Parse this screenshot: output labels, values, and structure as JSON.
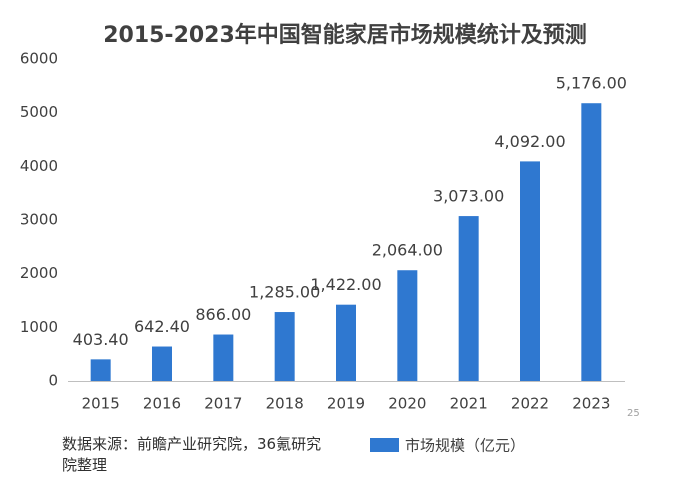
{
  "chart_data": {
    "type": "bar",
    "title": "2015-2023年中国智能家居市场规模统计及预测",
    "categories": [
      "2015",
      "2016",
      "2017",
      "2018",
      "2019",
      "2020",
      "2021",
      "2022",
      "2023"
    ],
    "series": [
      {
        "name": "市场规模（亿元）",
        "color": "#2f78d0",
        "values": [
          403.4,
          642.4,
          866,
          1285,
          1422,
          2064,
          3073,
          4092,
          5176
        ],
        "value_labels": [
          "403.40",
          "642.40",
          "866.00",
          "1,285.00",
          "1,422.00",
          "2,064.00",
          "3,073.00",
          "4,092.00",
          "5,176.00"
        ]
      }
    ],
    "ylim": [
      0,
      6000
    ],
    "yticks": [
      0,
      1000,
      2000,
      3000,
      4000,
      5000,
      6000
    ],
    "grid": false
  },
  "source": "数据来源：前瞻产业研究院，36氪研究院整理",
  "page_number": "25"
}
